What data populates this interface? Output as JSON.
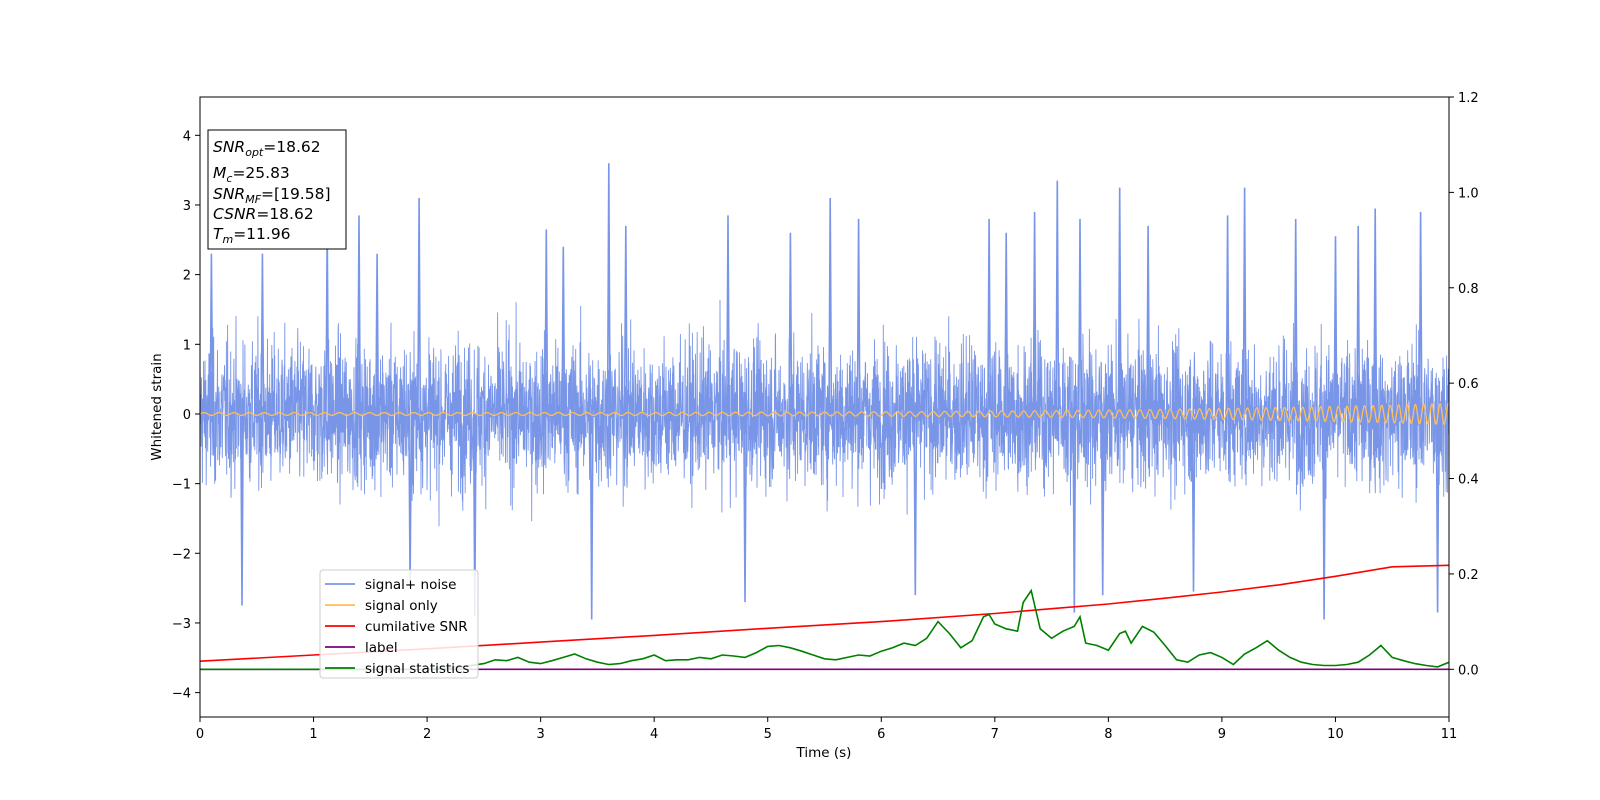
{
  "chart_data": {
    "type": "line",
    "xlabel": "Time (s)",
    "ylabel": "Whitened strain",
    "title": "",
    "xlim": [
      0,
      11
    ],
    "ylim": [
      -4.35,
      4.55
    ],
    "y2lim": [
      -0.1,
      1.2
    ],
    "xticks": [
      0,
      1,
      2,
      3,
      4,
      5,
      6,
      7,
      8,
      9,
      10,
      11
    ],
    "yticks": [
      -4,
      -3,
      -2,
      -1,
      0,
      1,
      2,
      3,
      4
    ],
    "y2ticks": [
      "0.0",
      "0.2",
      "0.4",
      "0.6",
      "0.8",
      "1.0",
      "1.2"
    ],
    "grid": false,
    "legend_position": "lower-left",
    "info_box": {
      "snr_opt": {
        "label": "SNR",
        "sub": "opt",
        "value": "=18.62"
      },
      "mc": {
        "label": "M",
        "sub": "c",
        "value": "=25.83"
      },
      "snr_mf": {
        "label": "SNR",
        "sub": "MF",
        "value": "=[19.58]"
      },
      "csnr": {
        "label": "CSNR",
        "value": "=18.62"
      },
      "tm": {
        "label": "T",
        "sub": "m",
        "value": "=11.96"
      }
    },
    "series": [
      {
        "name": "signal+ noise",
        "color": "#7895e8",
        "axis": "left",
        "description": "whitened noise, dense random fluctuation mostly between -2 and 2",
        "noise_band": [
          -1.6,
          1.6
        ],
        "peaks": [
          [
            0.1,
            2.3
          ],
          [
            0.37,
            -2.75
          ],
          [
            0.55,
            2.3
          ],
          [
            1.12,
            2.7
          ],
          [
            1.4,
            2.85
          ],
          [
            1.56,
            2.3
          ],
          [
            1.85,
            -2.5
          ],
          [
            1.93,
            3.1
          ],
          [
            2.42,
            -2.9
          ],
          [
            3.05,
            2.65
          ],
          [
            3.2,
            2.4
          ],
          [
            3.45,
            -2.95
          ],
          [
            3.6,
            3.6
          ],
          [
            3.75,
            2.7
          ],
          [
            4.65,
            2.85
          ],
          [
            4.8,
            -2.7
          ],
          [
            5.2,
            2.6
          ],
          [
            5.55,
            3.1
          ],
          [
            5.8,
            2.8
          ],
          [
            6.3,
            -2.6
          ],
          [
            6.95,
            2.8
          ],
          [
            7.1,
            2.6
          ],
          [
            7.35,
            2.9
          ],
          [
            7.55,
            3.35
          ],
          [
            7.7,
            -2.85
          ],
          [
            7.75,
            2.8
          ],
          [
            7.95,
            -2.6
          ],
          [
            8.1,
            3.25
          ],
          [
            8.35,
            2.7
          ],
          [
            8.75,
            -2.55
          ],
          [
            9.05,
            2.85
          ],
          [
            9.2,
            3.25
          ],
          [
            9.65,
            2.8
          ],
          [
            9.9,
            -2.95
          ],
          [
            10.0,
            2.55
          ],
          [
            10.2,
            2.7
          ],
          [
            10.35,
            2.95
          ],
          [
            10.75,
            2.9
          ],
          [
            10.9,
            -2.85
          ]
        ]
      },
      {
        "name": "signal only",
        "color": "#ffbe5a",
        "axis": "left",
        "description": "chirp, amplitude grows toward the end",
        "amplitude_start": 0.02,
        "amplitude_end": 0.15,
        "frequency_start_hz": 7.5,
        "frequency_end_hz": 14
      },
      {
        "name": "cumilative SNR",
        "color": "#ff0000",
        "axis": "right",
        "x": [
          0,
          1,
          2,
          3,
          4,
          5,
          6,
          7,
          7.5,
          8,
          8.5,
          9,
          9.5,
          10,
          10.5,
          11
        ],
        "values": [
          0.017,
          0.03,
          0.043,
          0.057,
          0.071,
          0.086,
          0.1,
          0.117,
          0.127,
          0.137,
          0.149,
          0.162,
          0.177,
          0.195,
          0.215,
          0.218
        ]
      },
      {
        "name": "label",
        "color": "#800080",
        "axis": "right",
        "x": [
          0,
          11
        ],
        "values": [
          0.0,
          0.0
        ]
      },
      {
        "name": "signal statistics",
        "color": "#008000",
        "axis": "right",
        "x": [
          0,
          2.0,
          2.3,
          2.5,
          2.6,
          2.7,
          2.8,
          2.9,
          3.0,
          3.1,
          3.2,
          3.3,
          3.4,
          3.5,
          3.6,
          3.7,
          3.8,
          3.9,
          4.0,
          4.1,
          4.2,
          4.3,
          4.4,
          4.5,
          4.6,
          4.7,
          4.8,
          4.9,
          5.0,
          5.1,
          5.2,
          5.3,
          5.4,
          5.5,
          5.6,
          5.7,
          5.8,
          5.9,
          6.0,
          6.1,
          6.2,
          6.3,
          6.4,
          6.5,
          6.6,
          6.7,
          6.8,
          6.9,
          6.95,
          7.0,
          7.1,
          7.2,
          7.25,
          7.32,
          7.4,
          7.5,
          7.6,
          7.7,
          7.75,
          7.8,
          7.9,
          8.0,
          8.1,
          8.15,
          8.2,
          8.3,
          8.4,
          8.5,
          8.6,
          8.7,
          8.8,
          8.9,
          9.0,
          9.1,
          9.2,
          9.3,
          9.4,
          9.5,
          9.6,
          9.7,
          9.8,
          9.9,
          10.0,
          10.1,
          10.2,
          10.3,
          10.4,
          10.5,
          10.6,
          10.7,
          10.8,
          10.9,
          11.0
        ],
        "values": [
          0.0,
          0.0,
          0.005,
          0.012,
          0.02,
          0.018,
          0.025,
          0.015,
          0.012,
          0.018,
          0.025,
          0.032,
          0.022,
          0.015,
          0.01,
          0.012,
          0.018,
          0.022,
          0.03,
          0.018,
          0.02,
          0.02,
          0.025,
          0.022,
          0.03,
          0.028,
          0.025,
          0.035,
          0.048,
          0.05,
          0.045,
          0.038,
          0.03,
          0.022,
          0.02,
          0.025,
          0.03,
          0.028,
          0.038,
          0.045,
          0.055,
          0.05,
          0.065,
          0.1,
          0.075,
          0.045,
          0.06,
          0.11,
          0.115,
          0.095,
          0.085,
          0.08,
          0.14,
          0.165,
          0.085,
          0.065,
          0.08,
          0.09,
          0.11,
          0.055,
          0.05,
          0.04,
          0.075,
          0.08,
          0.055,
          0.09,
          0.078,
          0.05,
          0.02,
          0.015,
          0.03,
          0.035,
          0.025,
          0.01,
          0.032,
          0.045,
          0.06,
          0.04,
          0.025,
          0.015,
          0.01,
          0.008,
          0.008,
          0.01,
          0.015,
          0.03,
          0.05,
          0.025,
          0.018,
          0.012,
          0.008,
          0.005,
          0.015
        ]
      }
    ]
  }
}
